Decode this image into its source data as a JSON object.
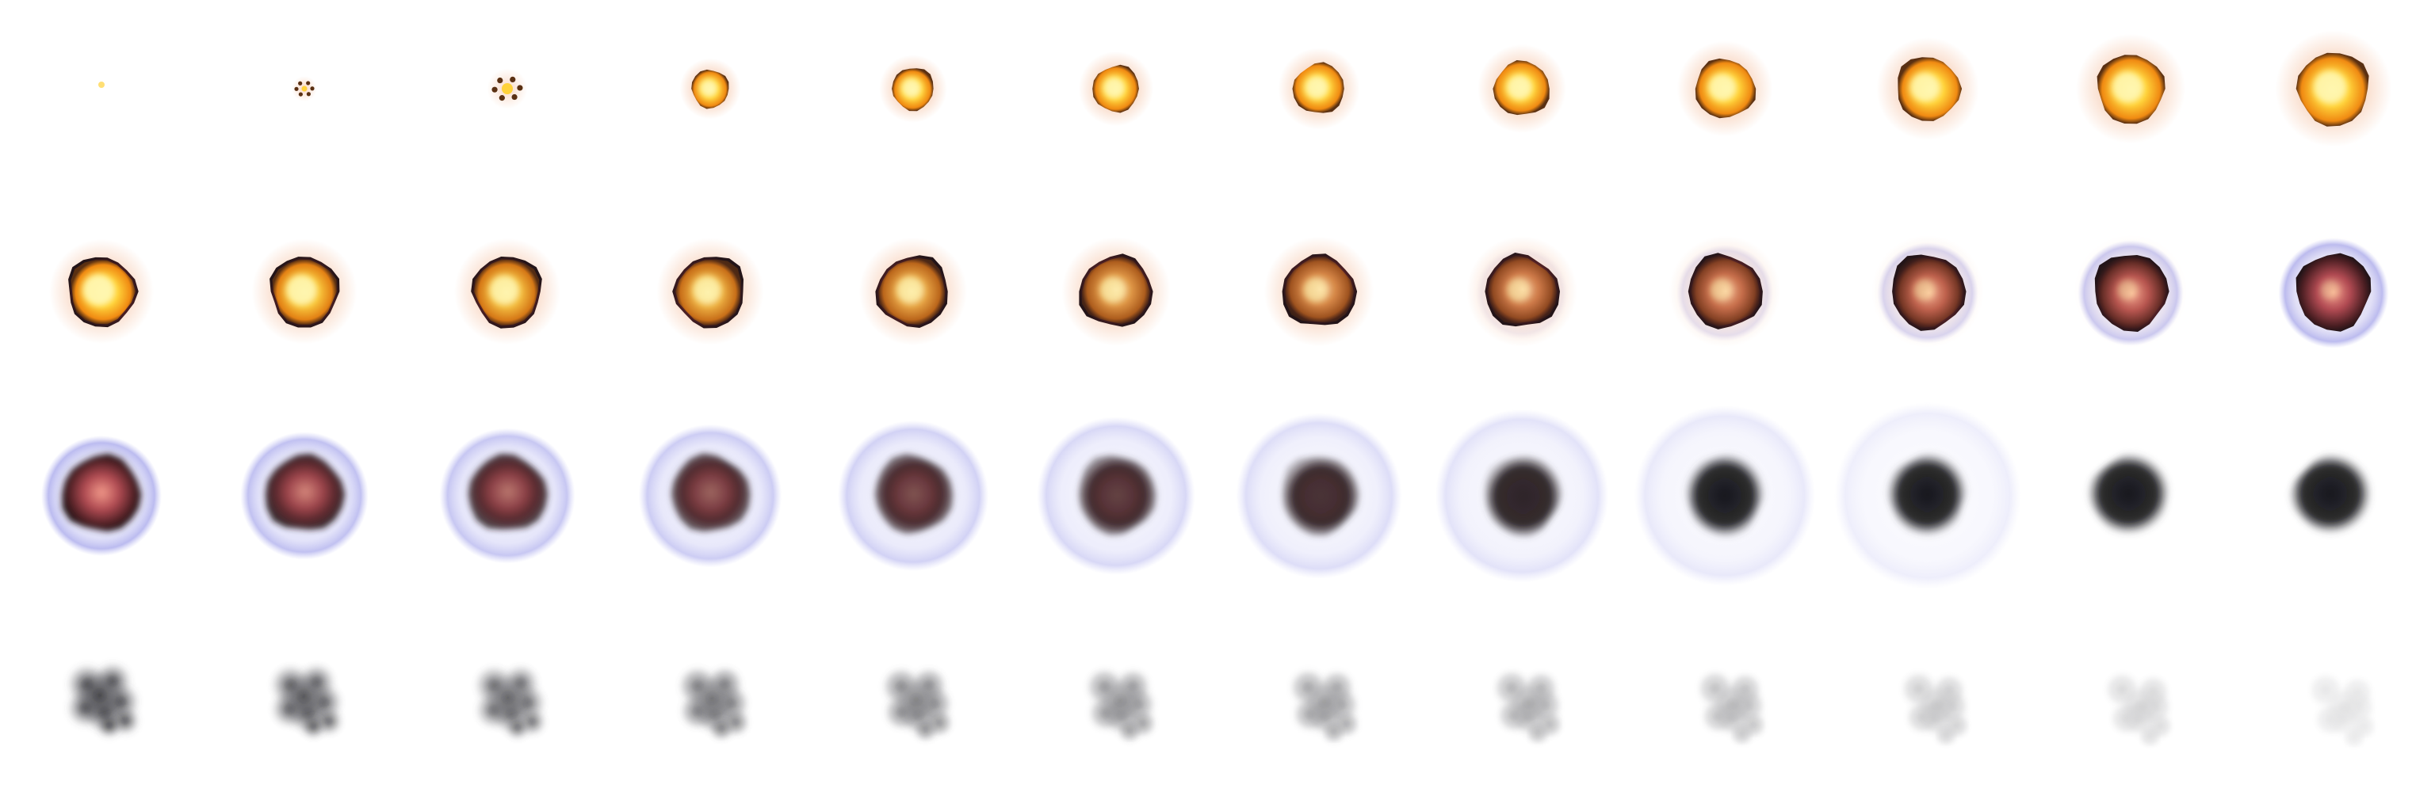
{
  "sprite_sheet": {
    "columns": 12,
    "rows": 4,
    "frame_count": 48,
    "subject": "explosion",
    "stages": [
      "spark",
      "fireball",
      "shockwave",
      "smoke"
    ],
    "palette": {
      "background": "#ffffff",
      "flash_core": "#fff7b0",
      "fire_yellow": "#ffd23a",
      "fire_orange": "#f08a12",
      "fire_glow": "#f0a070",
      "crust_brown": "#5a3012",
      "ember_red": "#b04a52",
      "smoke_dark": "#15151a",
      "smoke_grey": "#5a5a60",
      "shockwave_lavender": "#c8c8f4"
    }
  }
}
